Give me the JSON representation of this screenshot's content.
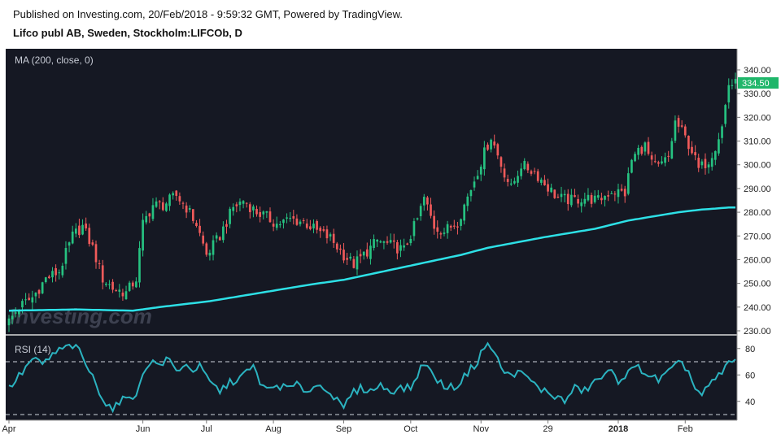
{
  "header": {
    "published": "Published on Investing.com, 20/Feb/2018 - 9:59:32 GMT, Powered by TradingView.",
    "symbol": "Lifco publ AB, Sweden, Stockholm:LIFCOb, D"
  },
  "watermark": "Investing.com",
  "colors": {
    "up": "#26c281",
    "down": "#f05a5a",
    "ma": "#2de0e6",
    "rsi": "#2bb3c0",
    "panel": "#151823",
    "price_tag": "#1fb66a"
  },
  "chart_data": [
    {
      "type": "candlestick",
      "indicator_label": "MA (200, close, 0)",
      "y_ticks": [
        "340.00",
        "330.00",
        "320.00",
        "310.00",
        "300.00",
        "290.00",
        "280.00",
        "270.00",
        "260.00",
        "250.00",
        "240.00",
        "230.00"
      ],
      "ylim": [
        230,
        340
      ],
      "last_price": "334.50",
      "x_ticks": [
        "Apr",
        "Jun",
        "Jul",
        "Aug",
        "Sep",
        "Oct",
        "Nov",
        "29",
        "2018",
        "Feb"
      ],
      "x_tick_positions": [
        0,
        40,
        59,
        79,
        100,
        120,
        141,
        161,
        182,
        202
      ],
      "bar_count": 218,
      "close_anchors": [
        [
          0,
          234
        ],
        [
          3,
          240
        ],
        [
          7,
          244
        ],
        [
          11,
          252
        ],
        [
          15,
          255
        ],
        [
          19,
          270
        ],
        [
          22,
          274
        ],
        [
          25,
          265
        ],
        [
          28,
          252
        ],
        [
          31,
          248
        ],
        [
          35,
          246
        ],
        [
          38,
          252
        ],
        [
          40,
          275
        ],
        [
          43,
          283
        ],
        [
          46,
          283
        ],
        [
          50,
          287
        ],
        [
          53,
          282
        ],
        [
          56,
          275
        ],
        [
          59,
          262
        ],
        [
          63,
          270
        ],
        [
          67,
          282
        ],
        [
          70,
          285
        ],
        [
          74,
          280
        ],
        [
          77,
          278
        ],
        [
          80,
          275
        ],
        [
          84,
          277
        ],
        [
          88,
          276
        ],
        [
          92,
          272
        ],
        [
          96,
          269
        ],
        [
          100,
          262
        ],
        [
          103,
          258
        ],
        [
          106,
          262
        ],
        [
          110,
          268
        ],
        [
          114,
          266
        ],
        [
          118,
          264
        ],
        [
          122,
          277
        ],
        [
          124,
          286
        ],
        [
          127,
          274
        ],
        [
          130,
          272
        ],
        [
          134,
          276
        ],
        [
          138,
          290
        ],
        [
          142,
          305
        ],
        [
          144,
          312
        ],
        [
          147,
          300
        ],
        [
          150,
          290
        ],
        [
          153,
          300
        ],
        [
          157,
          297
        ],
        [
          160,
          292
        ],
        [
          164,
          286
        ],
        [
          168,
          285
        ],
        [
          172,
          286
        ],
        [
          176,
          285
        ],
        [
          180,
          289
        ],
        [
          184,
          288
        ],
        [
          186,
          302
        ],
        [
          188,
          306
        ],
        [
          190,
          308
        ],
        [
          192,
          300
        ],
        [
          194,
          299
        ],
        [
          197,
          303
        ],
        [
          199,
          318
        ],
        [
          201,
          314
        ],
        [
          204,
          306
        ],
        [
          206,
          298
        ],
        [
          209,
          302
        ],
        [
          211,
          308
        ],
        [
          213,
          316
        ],
        [
          215,
          334
        ]
      ],
      "ma_anchors": [
        [
          0,
          238.5
        ],
        [
          20,
          239
        ],
        [
          37,
          238.5
        ],
        [
          45,
          240
        ],
        [
          60,
          242.5
        ],
        [
          75,
          246
        ],
        [
          90,
          249.5
        ],
        [
          100,
          251.5
        ],
        [
          115,
          256
        ],
        [
          135,
          262
        ],
        [
          143,
          265
        ],
        [
          160,
          269.5
        ],
        [
          175,
          273
        ],
        [
          185,
          276.5
        ],
        [
          200,
          280
        ],
        [
          206,
          281
        ],
        [
          215,
          282
        ]
      ],
      "ma_start_index": 0
    },
    {
      "type": "line",
      "indicator_label": "RSI (14)",
      "y_ticks": [
        "80",
        "60",
        "40"
      ],
      "ylim": [
        20,
        100
      ],
      "dashed_levels": [
        70,
        30
      ],
      "values_anchors": [
        [
          0,
          50
        ],
        [
          4,
          62
        ],
        [
          7,
          72
        ],
        [
          10,
          68
        ],
        [
          13,
          75
        ],
        [
          16,
          80
        ],
        [
          19,
          82
        ],
        [
          21,
          78
        ],
        [
          23,
          68
        ],
        [
          25,
          58
        ],
        [
          27,
          48
        ],
        [
          29,
          38
        ],
        [
          31,
          35
        ],
        [
          33,
          38
        ],
        [
          36,
          46
        ],
        [
          38,
          42
        ],
        [
          40,
          62
        ],
        [
          42,
          70
        ],
        [
          45,
          68
        ],
        [
          48,
          72
        ],
        [
          50,
          62
        ],
        [
          52,
          68
        ],
        [
          55,
          64
        ],
        [
          57,
          66
        ],
        [
          59,
          58
        ],
        [
          61,
          52
        ],
        [
          63,
          48
        ],
        [
          66,
          54
        ],
        [
          69,
          58
        ],
        [
          71,
          62
        ],
        [
          73,
          66
        ],
        [
          75,
          55
        ],
        [
          77,
          48
        ],
        [
          80,
          52
        ],
        [
          83,
          50
        ],
        [
          86,
          52
        ],
        [
          89,
          48
        ],
        [
          92,
          52
        ],
        [
          95,
          50
        ],
        [
          98,
          40
        ],
        [
          100,
          34
        ],
        [
          102,
          45
        ],
        [
          105,
          50
        ],
        [
          108,
          48
        ],
        [
          111,
          52
        ],
        [
          114,
          48
        ],
        [
          117,
          50
        ],
        [
          120,
          50
        ],
        [
          122,
          60
        ],
        [
          124,
          70
        ],
        [
          126,
          62
        ],
        [
          128,
          56
        ],
        [
          131,
          50
        ],
        [
          134,
          52
        ],
        [
          137,
          62
        ],
        [
          140,
          70
        ],
        [
          141,
          78
        ],
        [
          143,
          82
        ],
        [
          145,
          78
        ],
        [
          147,
          65
        ],
        [
          149,
          60
        ],
        [
          152,
          62
        ],
        [
          155,
          58
        ],
        [
          158,
          50
        ],
        [
          160,
          48
        ],
        [
          163,
          44
        ],
        [
          166,
          40
        ],
        [
          169,
          50
        ],
        [
          172,
          48
        ],
        [
          175,
          55
        ],
        [
          178,
          60
        ],
        [
          180,
          62
        ],
        [
          182,
          56
        ],
        [
          184,
          60
        ],
        [
          186,
          63
        ],
        [
          188,
          66
        ],
        [
          191,
          60
        ],
        [
          194,
          56
        ],
        [
          197,
          62
        ],
        [
          199,
          66
        ],
        [
          201,
          70
        ],
        [
          203,
          62
        ],
        [
          205,
          50
        ],
        [
          207,
          44
        ],
        [
          209,
          52
        ],
        [
          211,
          56
        ],
        [
          213,
          62
        ],
        [
          215,
          70
        ]
      ]
    }
  ]
}
